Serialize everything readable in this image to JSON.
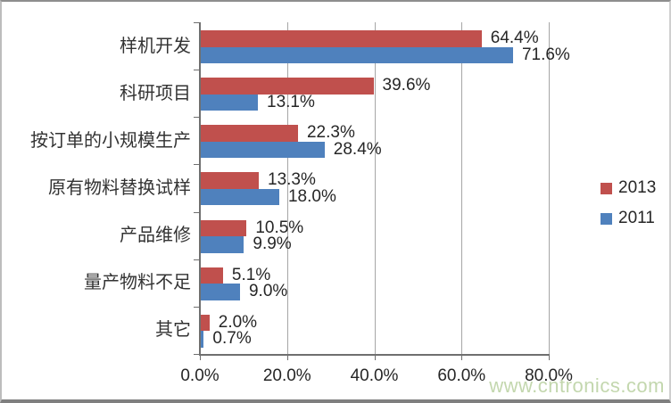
{
  "chart_data": {
    "type": "bar",
    "orientation": "horizontal",
    "title": "",
    "categories": [
      "样机开发",
      "科研项目",
      "按订单的小规模生产",
      "原有物料替换试样",
      "产品维修",
      "量产物料不足",
      "其它"
    ],
    "series": [
      {
        "name": "2013",
        "color": "#C0504D",
        "values": [
          64.4,
          39.6,
          22.3,
          13.3,
          10.5,
          5.1,
          2.0
        ]
      },
      {
        "name": "2011",
        "color": "#4F81BD",
        "values": [
          71.6,
          13.1,
          28.4,
          18.0,
          9.9,
          9.0,
          0.7
        ]
      }
    ],
    "value_label_format": "percent_one_decimal",
    "xlim": [
      0,
      80
    ],
    "x_ticks": [
      "0.0%",
      "20.0%",
      "40.0%",
      "60.0%",
      "80.0%"
    ],
    "grid": true,
    "legend_position": "right",
    "axis_color": "#6f6f6f",
    "gridline_color": "#a6a6a6",
    "label_color": "#262626"
  },
  "watermark": {
    "text": "www.cntronics.com",
    "color": "#c3d7ae"
  }
}
